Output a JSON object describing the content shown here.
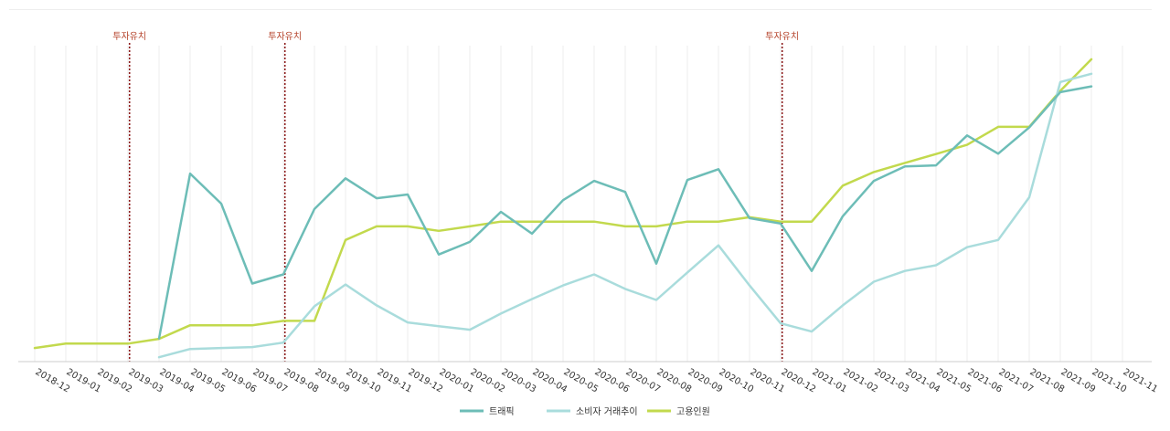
{
  "chart_data": {
    "type": "line",
    "title": "",
    "xlabel": "",
    "ylabel": "",
    "ylim": [
      0,
      100
    ],
    "grid": true,
    "categories": [
      "2018-12",
      "2019-01",
      "2019-02",
      "2019-03",
      "2019-04",
      "2019-05",
      "2019-06",
      "2019-07",
      "2019-08",
      "2019-09",
      "2019-10",
      "2019-11",
      "2019-12",
      "2020-01",
      "2020-02",
      "2020-03",
      "2020-04",
      "2020-05",
      "2020-06",
      "2020-07",
      "2020-08",
      "2020-09",
      "2020-10",
      "2020-11",
      "2020-12",
      "2021-01",
      "2021-02",
      "2021-03",
      "2021-04",
      "2021-05",
      "2021-06",
      "2021-07",
      "2021-08",
      "2021-09",
      "2021-10",
      "2021-11"
    ],
    "series": [
      {
        "name": "트래픽",
        "color": "#6dbdb7",
        "values": [
          null,
          null,
          null,
          null,
          7.3,
          59.5,
          50.0,
          24.7,
          27.6,
          48.3,
          58.0,
          51.7,
          52.9,
          33.9,
          37.9,
          47.4,
          40.5,
          51.1,
          57.2,
          53.7,
          31.0,
          57.5,
          60.9,
          45.4,
          43.7,
          28.7,
          46.0,
          57.2,
          61.8,
          62.1,
          71.6,
          65.8,
          74.1,
          85.3,
          87.1,
          null
        ]
      },
      {
        "name": "소비자 거래추이",
        "color": "#a9dcdc",
        "values": [
          null,
          null,
          null,
          null,
          1.4,
          4.0,
          4.3,
          4.6,
          6.0,
          17.5,
          24.4,
          17.8,
          12.4,
          11.2,
          10.1,
          15.2,
          19.8,
          24.1,
          27.6,
          23.0,
          19.5,
          28.2,
          36.8,
          24.1,
          12.1,
          9.5,
          17.8,
          25.3,
          28.7,
          30.5,
          36.2,
          38.5,
          52.0,
          88.5,
          91.1,
          null
        ]
      },
      {
        "name": "고용인원",
        "color": "#c2d94d",
        "values": [
          4.3,
          5.7,
          5.7,
          5.7,
          7.2,
          11.5,
          11.5,
          11.5,
          12.9,
          12.9,
          38.5,
          42.8,
          42.8,
          41.4,
          42.8,
          44.3,
          44.3,
          44.3,
          44.3,
          42.8,
          42.8,
          44.3,
          44.3,
          45.7,
          44.3,
          44.3,
          55.7,
          60.0,
          62.9,
          65.7,
          68.6,
          74.3,
          74.3,
          85.7,
          95.7,
          null
        ]
      }
    ],
    "markers": [
      {
        "after_category": "2019-03",
        "label": "투자유치"
      },
      {
        "after_category": "2019-08",
        "label": "투자유치"
      },
      {
        "after_category": "2020-12",
        "label": "투자유치"
      }
    ],
    "legend_position": "bottom-center"
  }
}
